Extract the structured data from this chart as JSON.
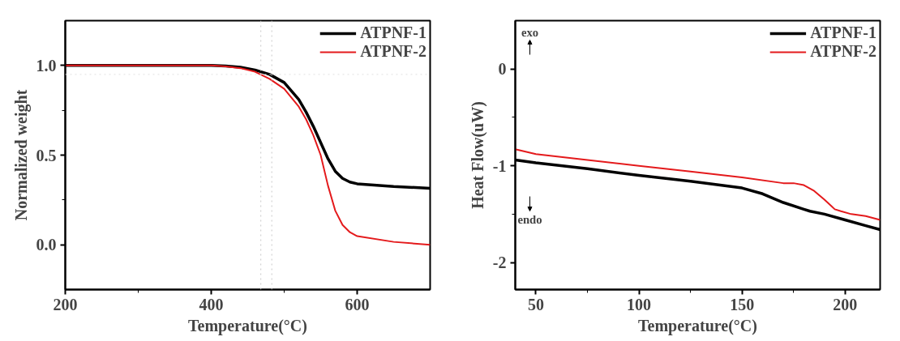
{
  "chart_data": [
    {
      "type": "line",
      "xlabel": "Temperature(°C)",
      "ylabel": "Normalized weight",
      "xlim": [
        200,
        700
      ],
      "ylim": [
        -0.25,
        1.25
      ],
      "xticks": [
        200,
        {
          "value": 300,
          "label": null
        },
        400,
        {
          "value": 500,
          "label": null
        },
        600
      ],
      "yticks": [
        {
          "value": 0,
          "label": "0.0"
        },
        {
          "value": 0.25,
          "label": null
        },
        {
          "value": 0.5,
          "label": "0.5"
        },
        {
          "value": 0.75,
          "label": null
        },
        {
          "value": 1,
          "label": "1.0"
        }
      ],
      "legend": "top right",
      "grid": false,
      "line_style": "solid",
      "ref_lines": [
        {
          "axis": "x",
          "value": 468,
          "color": "#c8c8c8",
          "line_style": "dotted"
        },
        {
          "axis": "x",
          "value": 483,
          "color": "#c8c8c8",
          "line_style": "dotted"
        },
        {
          "axis": "y",
          "value": 0.95,
          "color": "#e0e0e0",
          "line_style": "dotted"
        }
      ],
      "series": [
        {
          "name": "ATPNF-1",
          "color": "#000000",
          "x": [
            200,
            300,
            400,
            420,
            440,
            460,
            480,
            500,
            520,
            530,
            540,
            550,
            560,
            570,
            580,
            590,
            600,
            650,
            700
          ],
          "values": [
            1.0,
            1.0,
            1.0,
            0.997,
            0.99,
            0.975,
            0.95,
            0.905,
            0.81,
            0.74,
            0.66,
            0.57,
            0.48,
            0.41,
            0.37,
            0.35,
            0.34,
            0.325,
            0.315
          ]
        },
        {
          "name": "ATPNF-2",
          "color": "#e41a1c",
          "x": [
            200,
            300,
            400,
            420,
            440,
            460,
            480,
            500,
            520,
            530,
            540,
            550,
            560,
            570,
            580,
            590,
            600,
            650,
            700
          ],
          "values": [
            1.0,
            1.0,
            1.0,
            0.995,
            0.985,
            0.965,
            0.925,
            0.87,
            0.77,
            0.7,
            0.61,
            0.5,
            0.33,
            0.19,
            0.11,
            0.07,
            0.048,
            0.016,
            0.0
          ]
        }
      ]
    },
    {
      "type": "line",
      "xlabel": "Temperature(°C)",
      "ylabel": "Heat Flow(uW)",
      "xlim": [
        40,
        217
      ],
      "ylim": [
        -2.28,
        0.5
      ],
      "xticks": [
        50,
        {
          "value": 75,
          "label": null
        },
        100,
        {
          "value": 125,
          "label": null
        },
        150,
        {
          "value": 175,
          "label": null
        },
        200
      ],
      "yticks": [
        -2,
        {
          "value": -1.5,
          "label": null
        },
        -1,
        {
          "value": -0.5,
          "label": null
        },
        0
      ],
      "legend": "top right",
      "grid": false,
      "line_style": "solid",
      "annotations": [
        "exo",
        "endo"
      ],
      "series": [
        {
          "name": "ATPNF-1",
          "color": "#000000",
          "x": [
            40,
            50,
            75,
            100,
            125,
            150,
            160,
            170,
            180,
            183,
            190,
            200,
            210,
            217
          ],
          "values": [
            -0.94,
            -0.97,
            -1.03,
            -1.1,
            -1.16,
            -1.23,
            -1.29,
            -1.38,
            -1.45,
            -1.47,
            -1.5,
            -1.56,
            -1.62,
            -1.66
          ]
        },
        {
          "name": "ATPNF-2",
          "color": "#e41a1c",
          "x": [
            40,
            50,
            75,
            100,
            125,
            150,
            170,
            175,
            180,
            185,
            190,
            195,
            198,
            203,
            210,
            217
          ],
          "values": [
            -0.83,
            -0.88,
            -0.94,
            -1.0,
            -1.06,
            -1.12,
            -1.18,
            -1.18,
            -1.2,
            -1.26,
            -1.35,
            -1.45,
            -1.47,
            -1.5,
            -1.52,
            -1.56
          ]
        }
      ]
    }
  ]
}
